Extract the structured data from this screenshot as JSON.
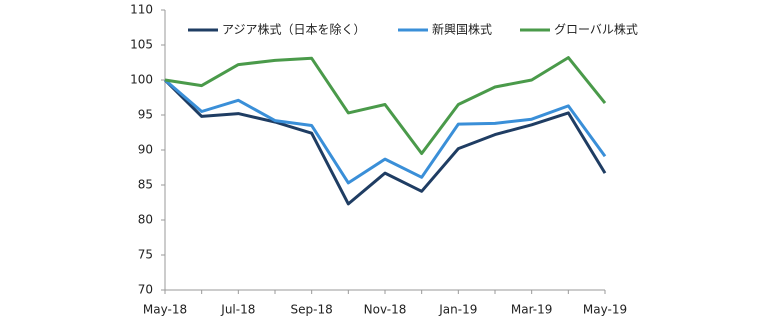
{
  "chart_data": {
    "type": "line",
    "categories": [
      "May-18",
      null,
      "Jul-18",
      null,
      "Sep-18",
      null,
      "Nov-18",
      null,
      "Jan-19",
      null,
      "Mar-19",
      null,
      "May-19"
    ],
    "series": [
      {
        "name": "アジア株式（日本を除く）",
        "color": "#1f3d63",
        "values": [
          100,
          94.8,
          95.2,
          94.0,
          92.4,
          82.3,
          86.7,
          84.1,
          90.2,
          92.2,
          93.6,
          95.3,
          86.7
        ]
      },
      {
        "name": "新興国株式",
        "color": "#3a8fd8",
        "values": [
          100,
          95.5,
          97.1,
          94.2,
          93.5,
          85.3,
          88.7,
          86.1,
          93.7,
          93.8,
          94.4,
          96.3,
          89.1
        ]
      },
      {
        "name": "グローバル株式",
        "color": "#4a9a4a",
        "values": [
          100,
          99.2,
          102.2,
          102.8,
          103.1,
          95.3,
          96.5,
          89.5,
          96.5,
          99.0,
          100.0,
          103.2,
          96.7
        ]
      }
    ],
    "ylim": [
      70,
      110
    ],
    "yticks": [
      70,
      75,
      80,
      85,
      90,
      95,
      100,
      105,
      110
    ]
  }
}
